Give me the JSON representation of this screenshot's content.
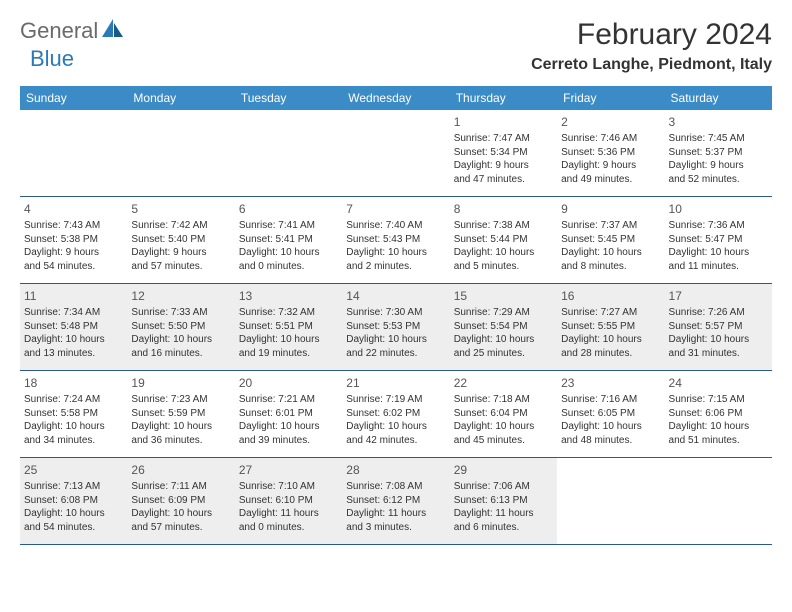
{
  "logo": {
    "text_general": "General",
    "text_blue": "Blue",
    "shape_color": "#2a7ab8"
  },
  "title": {
    "month": "February 2024",
    "location": "Cerreto Langhe, Piedmont, Italy"
  },
  "day_headers": [
    "Sunday",
    "Monday",
    "Tuesday",
    "Wednesday",
    "Thursday",
    "Friday",
    "Saturday"
  ],
  "colors": {
    "header_bg": "#3b8bc7",
    "header_text": "#ffffff",
    "border": "#2a5a8a",
    "shaded_bg": "#eeeeee"
  },
  "weeks": [
    [
      {
        "num": "",
        "sunrise": "",
        "sunset": "",
        "daylight1": "",
        "daylight2": "",
        "shaded": false
      },
      {
        "num": "",
        "sunrise": "",
        "sunset": "",
        "daylight1": "",
        "daylight2": "",
        "shaded": false
      },
      {
        "num": "",
        "sunrise": "",
        "sunset": "",
        "daylight1": "",
        "daylight2": "",
        "shaded": false
      },
      {
        "num": "",
        "sunrise": "",
        "sunset": "",
        "daylight1": "",
        "daylight2": "",
        "shaded": false
      },
      {
        "num": "1",
        "sunrise": "Sunrise: 7:47 AM",
        "sunset": "Sunset: 5:34 PM",
        "daylight1": "Daylight: 9 hours",
        "daylight2": "and 47 minutes.",
        "shaded": false
      },
      {
        "num": "2",
        "sunrise": "Sunrise: 7:46 AM",
        "sunset": "Sunset: 5:36 PM",
        "daylight1": "Daylight: 9 hours",
        "daylight2": "and 49 minutes.",
        "shaded": false
      },
      {
        "num": "3",
        "sunrise": "Sunrise: 7:45 AM",
        "sunset": "Sunset: 5:37 PM",
        "daylight1": "Daylight: 9 hours",
        "daylight2": "and 52 minutes.",
        "shaded": false
      }
    ],
    [
      {
        "num": "4",
        "sunrise": "Sunrise: 7:43 AM",
        "sunset": "Sunset: 5:38 PM",
        "daylight1": "Daylight: 9 hours",
        "daylight2": "and 54 minutes.",
        "shaded": false
      },
      {
        "num": "5",
        "sunrise": "Sunrise: 7:42 AM",
        "sunset": "Sunset: 5:40 PM",
        "daylight1": "Daylight: 9 hours",
        "daylight2": "and 57 minutes.",
        "shaded": false
      },
      {
        "num": "6",
        "sunrise": "Sunrise: 7:41 AM",
        "sunset": "Sunset: 5:41 PM",
        "daylight1": "Daylight: 10 hours",
        "daylight2": "and 0 minutes.",
        "shaded": false
      },
      {
        "num": "7",
        "sunrise": "Sunrise: 7:40 AM",
        "sunset": "Sunset: 5:43 PM",
        "daylight1": "Daylight: 10 hours",
        "daylight2": "and 2 minutes.",
        "shaded": false
      },
      {
        "num": "8",
        "sunrise": "Sunrise: 7:38 AM",
        "sunset": "Sunset: 5:44 PM",
        "daylight1": "Daylight: 10 hours",
        "daylight2": "and 5 minutes.",
        "shaded": false
      },
      {
        "num": "9",
        "sunrise": "Sunrise: 7:37 AM",
        "sunset": "Sunset: 5:45 PM",
        "daylight1": "Daylight: 10 hours",
        "daylight2": "and 8 minutes.",
        "shaded": false
      },
      {
        "num": "10",
        "sunrise": "Sunrise: 7:36 AM",
        "sunset": "Sunset: 5:47 PM",
        "daylight1": "Daylight: 10 hours",
        "daylight2": "and 11 minutes.",
        "shaded": false
      }
    ],
    [
      {
        "num": "11",
        "sunrise": "Sunrise: 7:34 AM",
        "sunset": "Sunset: 5:48 PM",
        "daylight1": "Daylight: 10 hours",
        "daylight2": "and 13 minutes.",
        "shaded": true
      },
      {
        "num": "12",
        "sunrise": "Sunrise: 7:33 AM",
        "sunset": "Sunset: 5:50 PM",
        "daylight1": "Daylight: 10 hours",
        "daylight2": "and 16 minutes.",
        "shaded": true
      },
      {
        "num": "13",
        "sunrise": "Sunrise: 7:32 AM",
        "sunset": "Sunset: 5:51 PM",
        "daylight1": "Daylight: 10 hours",
        "daylight2": "and 19 minutes.",
        "shaded": true
      },
      {
        "num": "14",
        "sunrise": "Sunrise: 7:30 AM",
        "sunset": "Sunset: 5:53 PM",
        "daylight1": "Daylight: 10 hours",
        "daylight2": "and 22 minutes.",
        "shaded": true
      },
      {
        "num": "15",
        "sunrise": "Sunrise: 7:29 AM",
        "sunset": "Sunset: 5:54 PM",
        "daylight1": "Daylight: 10 hours",
        "daylight2": "and 25 minutes.",
        "shaded": true
      },
      {
        "num": "16",
        "sunrise": "Sunrise: 7:27 AM",
        "sunset": "Sunset: 5:55 PM",
        "daylight1": "Daylight: 10 hours",
        "daylight2": "and 28 minutes.",
        "shaded": true
      },
      {
        "num": "17",
        "sunrise": "Sunrise: 7:26 AM",
        "sunset": "Sunset: 5:57 PM",
        "daylight1": "Daylight: 10 hours",
        "daylight2": "and 31 minutes.",
        "shaded": true
      }
    ],
    [
      {
        "num": "18",
        "sunrise": "Sunrise: 7:24 AM",
        "sunset": "Sunset: 5:58 PM",
        "daylight1": "Daylight: 10 hours",
        "daylight2": "and 34 minutes.",
        "shaded": false
      },
      {
        "num": "19",
        "sunrise": "Sunrise: 7:23 AM",
        "sunset": "Sunset: 5:59 PM",
        "daylight1": "Daylight: 10 hours",
        "daylight2": "and 36 minutes.",
        "shaded": false
      },
      {
        "num": "20",
        "sunrise": "Sunrise: 7:21 AM",
        "sunset": "Sunset: 6:01 PM",
        "daylight1": "Daylight: 10 hours",
        "daylight2": "and 39 minutes.",
        "shaded": false
      },
      {
        "num": "21",
        "sunrise": "Sunrise: 7:19 AM",
        "sunset": "Sunset: 6:02 PM",
        "daylight1": "Daylight: 10 hours",
        "daylight2": "and 42 minutes.",
        "shaded": false
      },
      {
        "num": "22",
        "sunrise": "Sunrise: 7:18 AM",
        "sunset": "Sunset: 6:04 PM",
        "daylight1": "Daylight: 10 hours",
        "daylight2": "and 45 minutes.",
        "shaded": false
      },
      {
        "num": "23",
        "sunrise": "Sunrise: 7:16 AM",
        "sunset": "Sunset: 6:05 PM",
        "daylight1": "Daylight: 10 hours",
        "daylight2": "and 48 minutes.",
        "shaded": false
      },
      {
        "num": "24",
        "sunrise": "Sunrise: 7:15 AM",
        "sunset": "Sunset: 6:06 PM",
        "daylight1": "Daylight: 10 hours",
        "daylight2": "and 51 minutes.",
        "shaded": false
      }
    ],
    [
      {
        "num": "25",
        "sunrise": "Sunrise: 7:13 AM",
        "sunset": "Sunset: 6:08 PM",
        "daylight1": "Daylight: 10 hours",
        "daylight2": "and 54 minutes.",
        "shaded": true
      },
      {
        "num": "26",
        "sunrise": "Sunrise: 7:11 AM",
        "sunset": "Sunset: 6:09 PM",
        "daylight1": "Daylight: 10 hours",
        "daylight2": "and 57 minutes.",
        "shaded": true
      },
      {
        "num": "27",
        "sunrise": "Sunrise: 7:10 AM",
        "sunset": "Sunset: 6:10 PM",
        "daylight1": "Daylight: 11 hours",
        "daylight2": "and 0 minutes.",
        "shaded": true
      },
      {
        "num": "28",
        "sunrise": "Sunrise: 7:08 AM",
        "sunset": "Sunset: 6:12 PM",
        "daylight1": "Daylight: 11 hours",
        "daylight2": "and 3 minutes.",
        "shaded": true
      },
      {
        "num": "29",
        "sunrise": "Sunrise: 7:06 AM",
        "sunset": "Sunset: 6:13 PM",
        "daylight1": "Daylight: 11 hours",
        "daylight2": "and 6 minutes.",
        "shaded": true
      },
      {
        "num": "",
        "sunrise": "",
        "sunset": "",
        "daylight1": "",
        "daylight2": "",
        "shaded": false
      },
      {
        "num": "",
        "sunrise": "",
        "sunset": "",
        "daylight1": "",
        "daylight2": "",
        "shaded": false
      }
    ]
  ]
}
